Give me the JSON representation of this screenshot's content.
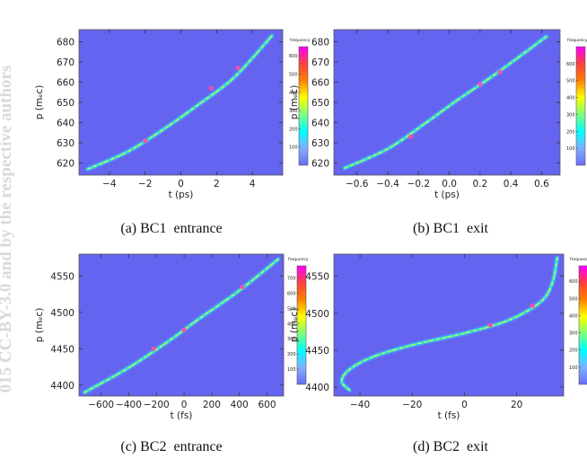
{
  "watermark": "015 CC-BY-3.0 and by the respective authors",
  "colorbar_title": "frequency",
  "colorbar_stops": [
    "#6a6cf5",
    "#7fb0ff",
    "#00ffff",
    "#7fff7f",
    "#ffff00",
    "#ff8000",
    "#ff4040",
    "#ff00ff"
  ],
  "background_color": "#6464f0",
  "chart_data": [
    {
      "type": "heatmap",
      "caption": "(a) BC1  entrance",
      "xlabel": "t (ps)",
      "ylabel": "p (mₑc)",
      "xlim": [
        -5.7,
        5.7
      ],
      "ylim": [
        614,
        686
      ],
      "xticks": [
        -4,
        -2,
        0,
        2,
        4
      ],
      "yticks": [
        620,
        630,
        640,
        650,
        660,
        670,
        680
      ],
      "cbar_ticks": [
        100,
        200,
        300,
        400,
        500,
        600
      ],
      "cbar_max": 650,
      "curve": [
        [
          -5.2,
          617
        ],
        [
          -3,
          625.5
        ],
        [
          -1,
          636.5
        ],
        [
          1,
          649
        ],
        [
          3,
          662.5
        ],
        [
          5.1,
          683
        ]
      ],
      "hot": [
        [
          -2.0,
          631
        ],
        [
          1.7,
          657
        ],
        [
          3.2,
          667
        ]
      ]
    },
    {
      "type": "heatmap",
      "caption": "(b) BC1  exit",
      "xlabel": "t (ps)",
      "ylabel": "p (mₑc)",
      "xlim": [
        -0.75,
        0.72
      ],
      "ylim": [
        614,
        686
      ],
      "xticks": [
        -0.6,
        -0.4,
        -0.2,
        0.0,
        0.2,
        0.4,
        0.6
      ],
      "yticks": [
        620,
        630,
        640,
        650,
        660,
        670,
        680
      ],
      "cbar_ticks": [
        100,
        200,
        300,
        400,
        500,
        600
      ],
      "cbar_max": 700,
      "curve": [
        [
          -0.68,
          617.5
        ],
        [
          -0.4,
          627
        ],
        [
          -0.15,
          640
        ],
        [
          0.05,
          651
        ],
        [
          0.3,
          664
        ],
        [
          0.63,
          682.5
        ]
      ],
      "hot": [
        [
          -0.25,
          633
        ],
        [
          0.2,
          659
        ],
        [
          0.33,
          665
        ]
      ]
    },
    {
      "type": "heatmap",
      "caption": "(c) BC2  entrance",
      "xlabel": "t (fs)",
      "ylabel": "p (mₑc)",
      "xlim": [
        -760,
        720
      ],
      "ylim": [
        4385,
        4580
      ],
      "xticks": [
        -600,
        -400,
        -200,
        0,
        200,
        400,
        600
      ],
      "yticks": [
        4400,
        4450,
        4500,
        4550
      ],
      "cbar_ticks": [
        100,
        200,
        300,
        400,
        500,
        600,
        700
      ],
      "cbar_max": 780,
      "curve": [
        [
          -720,
          4390
        ],
        [
          -400,
          4424
        ],
        [
          -100,
          4462
        ],
        [
          100,
          4490
        ],
        [
          400,
          4530
        ],
        [
          680,
          4573
        ]
      ],
      "hot": [
        [
          -220,
          4450
        ],
        [
          0,
          4476
        ],
        [
          420,
          4535
        ]
      ]
    },
    {
      "type": "heatmap",
      "caption": "(d) BC2  exit",
      "xlabel": "t (fs)",
      "ylabel": "p (mₑc)",
      "xlim": [
        -50,
        38
      ],
      "ylim": [
        4388,
        4580
      ],
      "xticks": [
        -40,
        -20,
        0,
        20
      ],
      "yticks": [
        4400,
        4450,
        4500,
        4550
      ],
      "cbar_ticks": [
        100,
        200,
        300,
        400,
        500,
        600
      ],
      "cbar_max": 690,
      "curve": [
        [
          -44,
          4396
        ],
        [
          -47,
          4408
        ],
        [
          -44,
          4424
        ],
        [
          -35,
          4441
        ],
        [
          -20,
          4457
        ],
        [
          0,
          4473
        ],
        [
          15,
          4488
        ],
        [
          25,
          4505
        ],
        [
          31,
          4522
        ],
        [
          34,
          4545
        ],
        [
          35.5,
          4575
        ]
      ],
      "hot": [
        [
          10,
          4484
        ],
        [
          26,
          4510
        ]
      ]
    }
  ]
}
